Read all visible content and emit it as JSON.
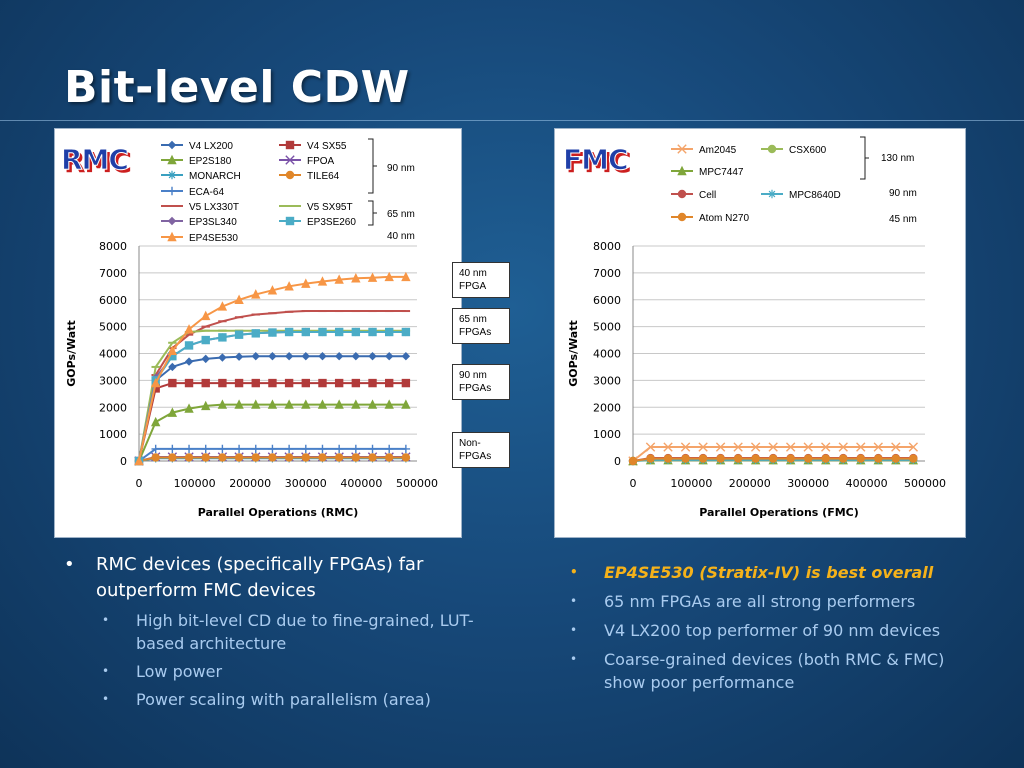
{
  "slide": {
    "title": "Bit-level CDW"
  },
  "annotations": [
    {
      "text": "40 nm\nFPGA"
    },
    {
      "text": "65 nm\nFPGAs"
    },
    {
      "text": "90 nm\nFPGAs"
    },
    {
      "text": "Non-\nFPGAs"
    }
  ],
  "bullets_left": [
    {
      "text": "RMC devices (specifically FPGAs) far outperform FMC devices",
      "level": 1
    },
    {
      "text": "High bit-level CD due to fine-grained, LUT-based architecture",
      "level": 2
    },
    {
      "text": "Low power",
      "level": 2
    },
    {
      "text": "Power scaling with parallelism (area)",
      "level": 2
    }
  ],
  "bullets_right": [
    {
      "text": "EP4SE530 (Stratix-IV) is best overall",
      "highlight": true
    },
    {
      "text": "65 nm FPGAs are all strong performers"
    },
    {
      "text": "V4 LX200 top performer of 90 nm devices"
    },
    {
      "text": "Coarse-grained devices (both RMC & FMC) show poor performance"
    }
  ],
  "chart_data": [
    {
      "type": "line",
      "badge": "RMC",
      "xlabel": "Parallel Operations (RMC)",
      "ylabel": "GOPs/Watt",
      "xlim": [
        0,
        500000
      ],
      "ylim": [
        0,
        8000
      ],
      "xticks": [
        "0",
        "100000",
        "200000",
        "300000",
        "400000",
        "500000"
      ],
      "yticks": [
        "0",
        "1000",
        "2000",
        "3000",
        "4000",
        "5000",
        "6000",
        "7000",
        "8000"
      ],
      "grid": true,
      "legend_position": "top",
      "legend_groups": [
        "90 nm",
        "65 nm",
        "40 nm"
      ],
      "x": [
        0,
        30000,
        60000,
        90000,
        120000,
        150000,
        180000,
        210000,
        240000,
        270000,
        300000,
        330000,
        360000,
        390000,
        420000,
        450000,
        480000
      ],
      "series": [
        {
          "name": "V4 LX200",
          "color": "#3a6bb0",
          "marker": "diamond",
          "values": [
            0,
            3000,
            3500,
            3700,
            3800,
            3850,
            3880,
            3900,
            3900,
            3900,
            3900,
            3900,
            3900,
            3900,
            3900,
            3900,
            3900
          ]
        },
        {
          "name": "V4 SX55",
          "color": "#b13a3a",
          "marker": "square",
          "values": [
            0,
            2700,
            2900,
            2900,
            2900,
            2900,
            2900,
            2900,
            2900,
            2900,
            2900,
            2900,
            2900,
            2900,
            2900,
            2900,
            2900
          ]
        },
        {
          "name": "EP2S180",
          "color": "#7fa63a",
          "marker": "triangle",
          "values": [
            0,
            1450,
            1800,
            1950,
            2050,
            2100,
            2100,
            2100,
            2100,
            2100,
            2100,
            2100,
            2100,
            2100,
            2100,
            2100,
            2100
          ]
        },
        {
          "name": "FPOA",
          "color": "#7a52a8",
          "marker": "x",
          "values": [
            0,
            150,
            150,
            150,
            150,
            150,
            150,
            150,
            150,
            150,
            150,
            150,
            150,
            150,
            150,
            150,
            150
          ]
        },
        {
          "name": "MONARCH",
          "color": "#3aa0c0",
          "marker": "star",
          "values": [
            0,
            100,
            100,
            100,
            100,
            100,
            100,
            100,
            100,
            100,
            100,
            100,
            100,
            100,
            100,
            100,
            100
          ]
        },
        {
          "name": "TILE64",
          "color": "#e0862a",
          "marker": "circle",
          "values": [
            0,
            130,
            130,
            130,
            130,
            130,
            130,
            130,
            130,
            130,
            130,
            130,
            130,
            130,
            130,
            130,
            130
          ]
        },
        {
          "name": "ECA-64",
          "color": "#4a80c8",
          "marker": "plus",
          "values": [
            0,
            450,
            450,
            450,
            450,
            450,
            450,
            450,
            450,
            450,
            450,
            450,
            450,
            450,
            450,
            450,
            450
          ]
        },
        {
          "name": "V5 LX330T",
          "color": "#c0504d",
          "marker": "dash",
          "values": [
            0,
            3200,
            4200,
            4700,
            5000,
            5200,
            5350,
            5450,
            5500,
            5550,
            5580,
            5580,
            5580,
            5580,
            5580,
            5580,
            5580
          ]
        },
        {
          "name": "V5 SX95T",
          "color": "#9bbb59",
          "marker": "dash",
          "values": [
            0,
            3500,
            4400,
            4800,
            4850,
            4850,
            4850,
            4850,
            4850,
            4850,
            4850,
            4850,
            4850,
            4850,
            4850,
            4850,
            4850
          ]
        },
        {
          "name": "EP3SL340",
          "color": "#8064a2",
          "marker": "diamond",
          "values": [
            0,
            3100,
            3900,
            4300,
            4500,
            4600,
            4700,
            4750,
            4780,
            4800,
            4800,
            4800,
            4800,
            4800,
            4800,
            4800,
            4800
          ]
        },
        {
          "name": "EP3SE260",
          "color": "#4bacc6",
          "marker": "square",
          "values": [
            0,
            3000,
            3900,
            4300,
            4500,
            4600,
            4700,
            4750,
            4780,
            4800,
            4800,
            4800,
            4800,
            4800,
            4800,
            4800,
            4800
          ]
        },
        {
          "name": "EP4SE530",
          "color": "#f79646",
          "marker": "triangle",
          "values": [
            0,
            2900,
            4100,
            4900,
            5400,
            5750,
            6000,
            6200,
            6350,
            6500,
            6600,
            6680,
            6750,
            6800,
            6820,
            6850,
            6850
          ]
        }
      ]
    },
    {
      "type": "line",
      "badge": "FMC",
      "xlabel": "Parallel Operations (FMC)",
      "ylabel": "GOPs/Watt",
      "xlim": [
        0,
        500000
      ],
      "ylim": [
        0,
        8000
      ],
      "xticks": [
        "0",
        "100000",
        "200000",
        "300000",
        "400000",
        "500000"
      ],
      "yticks": [
        "0",
        "1000",
        "2000",
        "3000",
        "4000",
        "5000",
        "6000",
        "7000",
        "8000"
      ],
      "grid": true,
      "legend_position": "top",
      "legend_groups": [
        "130 nm",
        "90 nm",
        "45 nm"
      ],
      "x": [
        0,
        30000,
        60000,
        90000,
        120000,
        150000,
        180000,
        210000,
        240000,
        270000,
        300000,
        330000,
        360000,
        390000,
        420000,
        450000,
        480000
      ],
      "series": [
        {
          "name": "Am2045",
          "color": "#f4a46a",
          "marker": "x",
          "values": [
            0,
            520,
            520,
            520,
            520,
            520,
            520,
            520,
            520,
            520,
            520,
            520,
            520,
            520,
            520,
            520,
            520
          ]
        },
        {
          "name": "CSX600",
          "color": "#9bbb59",
          "marker": "circle",
          "values": [
            0,
            60,
            60,
            60,
            60,
            60,
            60,
            60,
            60,
            60,
            60,
            60,
            60,
            60,
            60,
            60,
            60
          ]
        },
        {
          "name": "MPC7447",
          "color": "#7fa63a",
          "marker": "triangle",
          "values": [
            0,
            30,
            30,
            30,
            30,
            30,
            30,
            30,
            30,
            30,
            30,
            30,
            30,
            30,
            30,
            30,
            30
          ]
        },
        {
          "name": "Cell",
          "color": "#c0504d",
          "marker": "circle",
          "values": [
            0,
            110,
            110,
            110,
            110,
            110,
            110,
            110,
            110,
            110,
            110,
            110,
            110,
            110,
            110,
            110,
            110
          ]
        },
        {
          "name": "MPC8640D",
          "color": "#4bacc6",
          "marker": "star",
          "values": [
            0,
            40,
            40,
            40,
            40,
            40,
            40,
            40,
            40,
            40,
            40,
            40,
            40,
            40,
            40,
            40,
            40
          ]
        },
        {
          "name": "Atom N270",
          "color": "#e0862a",
          "marker": "circle",
          "values": [
            0,
            90,
            90,
            90,
            90,
            90,
            90,
            90,
            90,
            90,
            90,
            90,
            90,
            90,
            90,
            90,
            90
          ]
        }
      ]
    }
  ]
}
